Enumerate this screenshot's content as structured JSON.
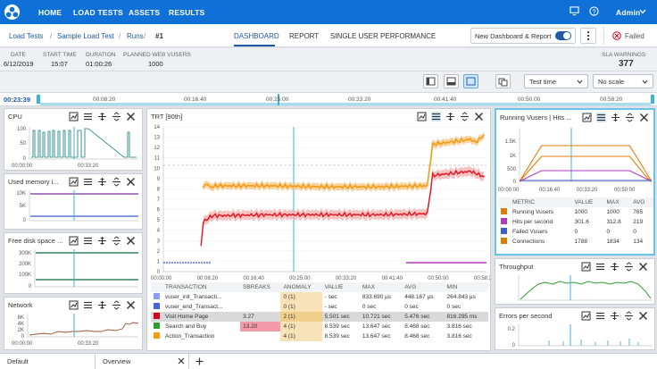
{
  "nav": {
    "items": [
      "HOME",
      "LOAD TESTS",
      "ASSETS",
      "RESULTS"
    ],
    "user": "Admin"
  },
  "breadcrumb": {
    "items": [
      "Load Tests",
      "Sample Load Test",
      "Runs"
    ],
    "run": "#1"
  },
  "tabs": {
    "items": [
      "DASHBOARD",
      "REPORT",
      "SINGLE USER PERFORMANCE"
    ],
    "active": 0
  },
  "new_dashboard": {
    "label": "New Dashboard & Report",
    "enabled": true
  },
  "status": {
    "label": "Failed",
    "color": "#d0021b"
  },
  "run_info": [
    {
      "label": "DATE",
      "value": "6/12/2019"
    },
    {
      "label": "START TIME",
      "value": "15:07"
    },
    {
      "label": "DURATION",
      "value": "01:00:26"
    },
    {
      "label": "PLANNED WEB VUSERS",
      "value": "1000"
    }
  ],
  "sla": {
    "label": "SLA WARNINGS",
    "value": "377"
  },
  "toolbar": {
    "granularity": "Test time",
    "scale": "No scale"
  },
  "timeline": {
    "current": "00:23:39",
    "ticks": [
      "00:08:20",
      "00:16:40",
      "00:25:00",
      "00:33:20",
      "00:41:40",
      "00:50:00",
      "00:58:20"
    ]
  },
  "panels": {
    "cpu": {
      "title": "CPU",
      "yticks": [
        "100",
        "50",
        "0"
      ],
      "xticks": [
        "00:00:00",
        "00:33:20"
      ]
    },
    "memory": {
      "title": "Used memory i...",
      "yticks": [
        "10K",
        "5K",
        "0"
      ]
    },
    "disk": {
      "title": "Free disk space ...",
      "yticks": [
        "300K",
        "200K",
        "100K",
        "0"
      ]
    },
    "network": {
      "title": "Network",
      "yticks": [
        "6K",
        "4K",
        "2K",
        "0"
      ],
      "xticks": [
        "00:00:00",
        "00:33:20"
      ]
    },
    "trt": {
      "title": "TRT [90th]",
      "yticks": [
        "14",
        "13",
        "12",
        "11",
        "10",
        "9",
        "8",
        "7",
        "6",
        "5",
        "4",
        "3",
        "2",
        "1",
        "0"
      ],
      "xticks": [
        "00:00:00",
        "00:08:20",
        "00:16:40",
        "00:25:00",
        "00:33:20",
        "00:41:40",
        "00:50:00",
        "00:58:20"
      ]
    },
    "vusers": {
      "title": "Running Vusers | Hits ...",
      "yticks": [
        "1.5K",
        "1K",
        "500",
        "0"
      ],
      "xticks": [
        "00:00:00",
        "00:16:40",
        "00:33:20",
        "00:50:00"
      ]
    },
    "throughput": {
      "title": "Throughput"
    },
    "errors": {
      "title": "Errors per second",
      "yticks": [
        "0.2",
        "0"
      ]
    }
  },
  "trt_table": {
    "headers": [
      "TRANSACTION",
      "SBREAKS",
      "ANOMALY",
      "VALUE",
      "MAX",
      "AVG",
      "MIN"
    ],
    "rows": [
      {
        "color": "#8b9cf0",
        "cells": [
          "vuser_init_Transacti...",
          "",
          "0 (1)",
          "- sec",
          "833.690 µs",
          "448.167 µs",
          "264.843 µs"
        ]
      },
      {
        "color": "#4a64d8",
        "cells": [
          "vuser_end_Transact...",
          "",
          "0 (1)",
          "- sec",
          "0 sec",
          "0 sec",
          "0 sec"
        ]
      },
      {
        "color": "#d0021b",
        "cells": [
          "Visit Home Page",
          "3.27",
          "2 (1)",
          "5.501 sec",
          "10.721 sec",
          "5.476 sec",
          "816.295 ms"
        ]
      },
      {
        "color": "#2e9e2e",
        "cells": [
          "Search and Buy",
          "13.20",
          "4 (1)",
          "8.539 sec",
          "13.647 sec",
          "8.468 sec",
          "3.816 sec"
        ]
      },
      {
        "color": "#f39c12",
        "cells": [
          "Action_Transaction",
          "",
          "4 (1)",
          "8.539 sec",
          "13.647 sec",
          "8.468 sec",
          "3.816 sec"
        ]
      }
    ]
  },
  "metrics_table": {
    "headers": [
      "METRIC",
      "VALUE",
      "MAX",
      "AVG"
    ],
    "rows": [
      {
        "color": "#e07b00",
        "cells": [
          "Running Vusers",
          "1000",
          "1000",
          "765"
        ]
      },
      {
        "color": "#b03ac0",
        "cells": [
          "Hits per second",
          "301.6",
          "312.8",
          "219"
        ]
      },
      {
        "color": "#3a5fd0",
        "cells": [
          "Failed Vusers",
          "0",
          "0",
          "0"
        ]
      },
      {
        "color": "#e07b00",
        "cells": [
          "Connections",
          "1788",
          "1834",
          "134"
        ]
      }
    ]
  },
  "bottom_tabs": {
    "items": [
      "Default",
      "Overview"
    ],
    "active": 1
  },
  "chart_data": [
    {
      "type": "line",
      "title": "TRT [90th]",
      "ylim": [
        0,
        14
      ],
      "series": [
        {
          "name": "Action_Transaction",
          "x": [
            0,
            7,
            7.4,
            8.2,
            9,
            10,
            20,
            30,
            40,
            49,
            50,
            57,
            58,
            59.5
          ],
          "values": [
            null,
            null,
            8.2,
            8.4,
            8.2,
            8.3,
            8.3,
            8.2,
            8.2,
            8.3,
            12.3,
            12.8,
            12.5,
            13.2
          ]
        },
        {
          "name": "Visit Home Page",
          "x": [
            0,
            7,
            7.4,
            9,
            20,
            30,
            40,
            49,
            50,
            57,
            59.5
          ],
          "values": [
            null,
            2.5,
            4.8,
            5.4,
            5.5,
            5.5,
            5.5,
            5.6,
            9.3,
            9.7,
            9.2
          ]
        }
      ]
    },
    {
      "type": "line",
      "title": "Running Vusers | Hits ...",
      "ylim": [
        0,
        1500
      ],
      "series": [
        {
          "name": "Running Vusers",
          "x": [
            0,
            10,
            25,
            50,
            58,
            60
          ],
          "values": [
            0,
            1000,
            1000,
            1000,
            200,
            0
          ]
        },
        {
          "name": "Hits per second",
          "x": [
            0,
            10,
            50,
            58,
            60
          ],
          "values": [
            0,
            300,
            300,
            60,
            0
          ]
        },
        {
          "name": "Connections",
          "x": [
            0,
            10,
            25,
            50,
            58,
            60
          ],
          "values": [
            0,
            700,
            700,
            700,
            100,
            0
          ]
        }
      ]
    }
  ]
}
